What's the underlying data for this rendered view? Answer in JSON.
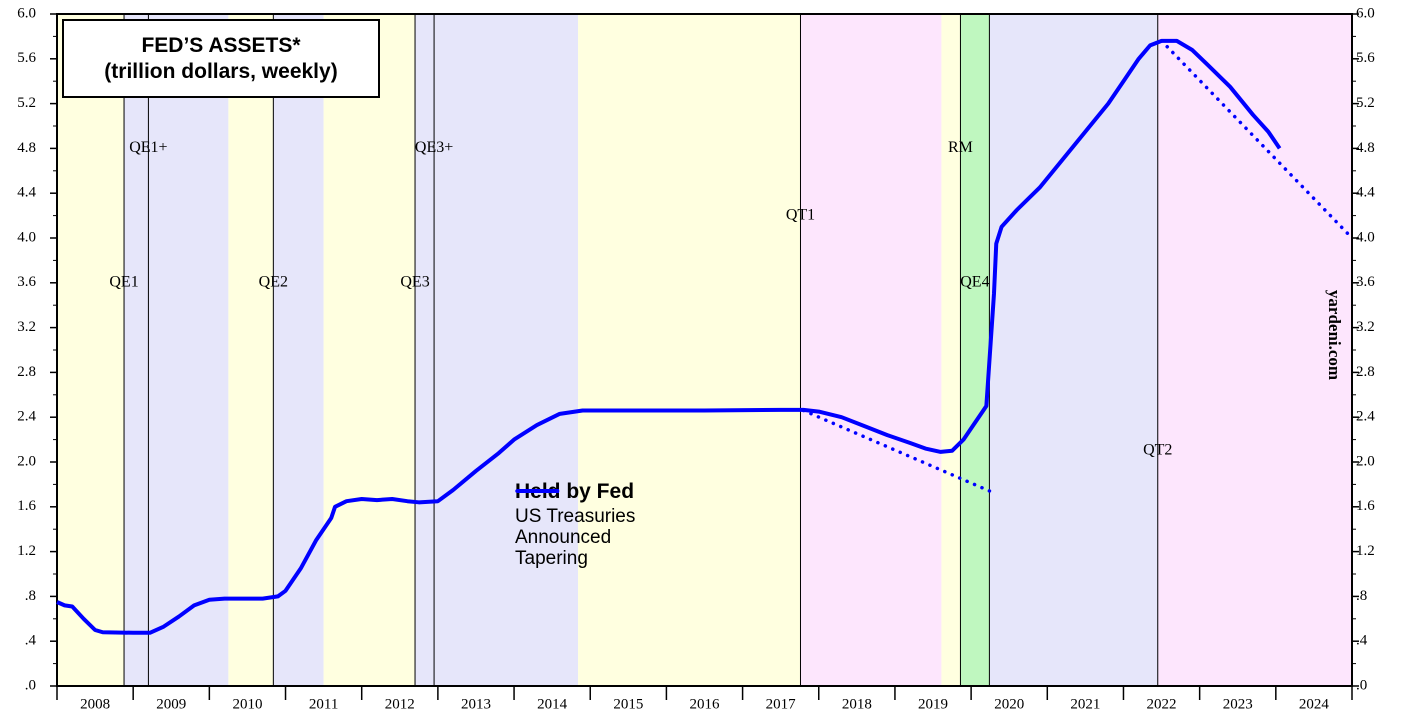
{
  "chart_data": {
    "type": "line",
    "title": "FED’S ASSETS*",
    "subtitle": "(trillion dollars, weekly)",
    "legend_title": "Held by Fed",
    "watermark": "yardeni.com",
    "xlim": [
      2008,
      2025
    ],
    "xticks": [
      2008,
      2009,
      2010,
      2011,
      2012,
      2013,
      2014,
      2015,
      2016,
      2017,
      2018,
      2019,
      2020,
      2021,
      2022,
      2023,
      2024,
      2025
    ],
    "categories": [
      "2008",
      "2009",
      "2010",
      "2011",
      "2012",
      "2013",
      "2014",
      "2015",
      "2016",
      "2017",
      "2018",
      "2019",
      "2020",
      "2021",
      "2022",
      "2023",
      "2024"
    ],
    "ylim": [
      0,
      6
    ],
    "yticks": [
      {
        "value": 0,
        "label": ".0"
      },
      {
        "value": 0.4,
        "label": ".4"
      },
      {
        "value": 0.8,
        "label": ".8"
      },
      1.2,
      1.6,
      {
        "value": 2,
        "label": "2.0"
      },
      2.4,
      2.8,
      3.2,
      3.6,
      {
        "value": 4,
        "label": "4.0"
      },
      4.4,
      4.8,
      5.2,
      5.6,
      {
        "value": 6,
        "label": "6.0"
      }
    ],
    "bands": [
      {
        "from": 2008.0,
        "to": 2008.88,
        "color": "#ffffe0"
      },
      {
        "from": 2008.88,
        "to": 2010.25,
        "color": "#e6e6fa"
      },
      {
        "from": 2010.25,
        "to": 2010.84,
        "color": "#ffffe0"
      },
      {
        "from": 2010.84,
        "to": 2011.5,
        "color": "#e6e6fa"
      },
      {
        "from": 2011.5,
        "to": 2012.7,
        "color": "#ffffe0"
      },
      {
        "from": 2012.7,
        "to": 2014.84,
        "color": "#e6e6fa"
      },
      {
        "from": 2014.84,
        "to": 2017.76,
        "color": "#ffffe0"
      },
      {
        "from": 2017.76,
        "to": 2019.61,
        "color": "#fde6fd"
      },
      {
        "from": 2019.61,
        "to": 2019.86,
        "color": "#ffffe0"
      },
      {
        "from": 2019.86,
        "to": 2020.24,
        "color": "#bff7bf"
      },
      {
        "from": 2020.24,
        "to": 2022.45,
        "color": "#e6e6fa"
      },
      {
        "from": 2022.45,
        "to": 2025.0,
        "color": "#fde6fd"
      }
    ],
    "events": [
      {
        "x": 2008.88,
        "label": "QE1",
        "y": 3.6,
        "line": true
      },
      {
        "x": 2009.2,
        "label": "QE1+",
        "y": 4.8,
        "line": true
      },
      {
        "x": 2010.84,
        "label": "QE2",
        "y": 3.6,
        "line": true
      },
      {
        "x": 2012.7,
        "label": "QE3",
        "y": 3.6,
        "line": true
      },
      {
        "x": 2012.95,
        "label": "QE3+",
        "y": 4.8,
        "line": true
      },
      {
        "x": 2017.76,
        "label": "QT1",
        "y": 4.2,
        "line": true
      },
      {
        "x": 2019.86,
        "label": "RM",
        "y": 4.8,
        "line": true
      },
      {
        "x": 2020.05,
        "label": "QE4",
        "y": 3.6,
        "line": false
      },
      {
        "x": 2020.24,
        "label": null,
        "y": null,
        "line": true
      },
      {
        "x": 2022.45,
        "label": "QT2",
        "y": 2.1,
        "line": true
      }
    ],
    "series": [
      {
        "name": "US Treasuries",
        "color": "#0000ff",
        "style": "solid",
        "x": [
          2008.0,
          2008.1,
          2008.2,
          2008.35,
          2008.5,
          2008.6,
          2009.0,
          2009.22,
          2009.4,
          2009.6,
          2009.8,
          2010.0,
          2010.2,
          2010.5,
          2010.7,
          2010.9,
          2011.0,
          2011.2,
          2011.4,
          2011.6,
          2011.65,
          2011.8,
          2012.0,
          2012.2,
          2012.4,
          2012.6,
          2012.75,
          2013.0,
          2013.2,
          2013.5,
          2013.8,
          2014.0,
          2014.3,
          2014.6,
          2014.9,
          2015.5,
          2016.5,
          2017.5,
          2017.8,
          2018.0,
          2018.3,
          2018.6,
          2018.9,
          2019.2,
          2019.4,
          2019.6,
          2019.75,
          2019.9,
          2020.0,
          2020.15,
          2020.2,
          2020.23,
          2020.3,
          2020.33,
          2020.4,
          2020.6,
          2020.9,
          2021.2,
          2021.5,
          2021.8,
          2022.0,
          2022.2,
          2022.35,
          2022.5,
          2022.7,
          2022.9,
          2023.1,
          2023.4,
          2023.7,
          2023.9,
          2024.05
        ],
        "values": [
          0.75,
          0.72,
          0.71,
          0.6,
          0.5,
          0.48,
          0.475,
          0.475,
          0.53,
          0.62,
          0.72,
          0.77,
          0.78,
          0.78,
          0.78,
          0.8,
          0.85,
          1.05,
          1.3,
          1.5,
          1.6,
          1.65,
          1.67,
          1.66,
          1.67,
          1.65,
          1.64,
          1.65,
          1.75,
          1.92,
          2.08,
          2.2,
          2.33,
          2.43,
          2.46,
          2.46,
          2.46,
          2.465,
          2.465,
          2.45,
          2.4,
          2.32,
          2.24,
          2.17,
          2.12,
          2.09,
          2.1,
          2.2,
          2.3,
          2.45,
          2.5,
          2.8,
          3.5,
          3.95,
          4.1,
          4.25,
          4.45,
          4.7,
          4.95,
          5.2,
          5.4,
          5.6,
          5.72,
          5.76,
          5.76,
          5.68,
          5.55,
          5.35,
          5.1,
          4.95,
          4.8
        ]
      },
      {
        "name": "Announced Tapering",
        "color": "#0000ff",
        "style": "dotted",
        "x": [
          2017.8,
          2020.28,
          null,
          2022.5,
          2025.0
        ],
        "values": [
          2.46,
          1.73,
          null,
          5.76,
          4.0
        ]
      }
    ]
  }
}
